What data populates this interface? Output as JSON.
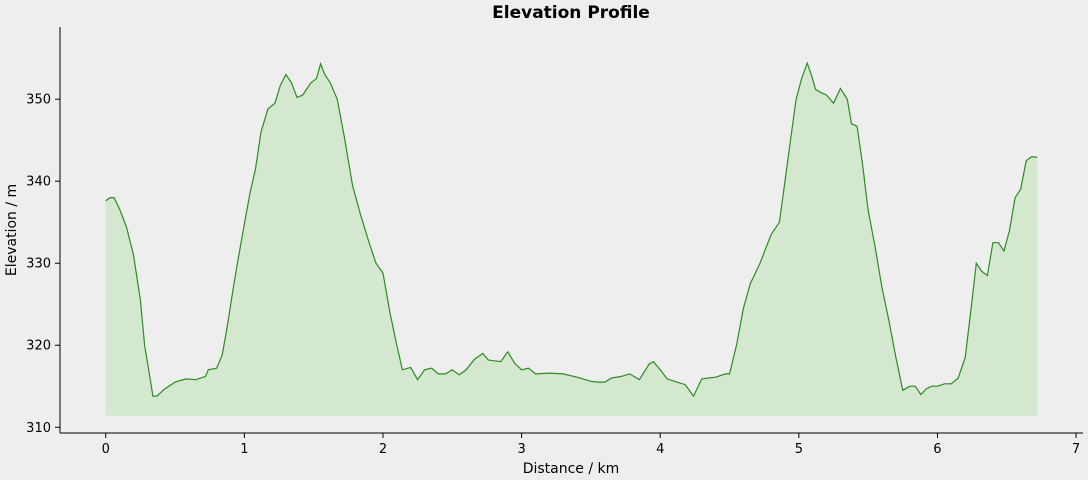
{
  "chart_data": {
    "type": "area",
    "title": "Elevation Profile",
    "xlabel": "Distance / km",
    "ylabel": "Elevation / m",
    "xlim": [
      -0.33,
      7.05
    ],
    "ylim": [
      309.3,
      358.8
    ],
    "xticks": [
      0,
      1,
      2,
      3,
      4,
      5,
      6,
      7
    ],
    "yticks": [
      310,
      320,
      330,
      340,
      350
    ],
    "baseline": 311.4,
    "grid": false,
    "legend": "none",
    "colors": {
      "line": "#2e8b22",
      "fill": "#d3e8cf",
      "background": "#eeeeee",
      "axis": "#000000"
    },
    "series": [
      {
        "x": [
          0,
          0.03,
          0.06,
          0.1,
          0.15,
          0.2,
          0.25,
          0.28,
          0.31,
          0.34,
          0.37,
          0.42,
          0.5,
          0.58,
          0.65,
          0.72,
          0.74,
          0.8,
          0.84,
          0.88,
          0.92,
          0.95,
          1.0,
          1.04,
          1.08,
          1.12,
          1.17,
          1.22,
          1.26,
          1.3,
          1.34,
          1.38,
          1.42,
          1.48,
          1.52,
          1.55,
          1.58,
          1.62,
          1.67,
          1.72,
          1.78,
          1.84,
          1.9,
          1.95,
          2.0,
          2.05,
          2.1,
          2.14,
          2.2,
          2.25,
          2.3,
          2.35,
          2.4,
          2.45,
          2.5,
          2.55,
          2.6,
          2.66,
          2.72,
          2.76,
          2.8,
          2.85,
          2.9,
          2.95,
          3.0,
          3.05,
          3.1,
          3.2,
          3.3,
          3.4,
          3.5,
          3.55,
          3.6,
          3.65,
          3.72,
          3.78,
          3.85,
          3.92,
          3.95,
          4.0,
          4.05,
          4.12,
          4.18,
          4.24,
          4.3,
          4.35,
          4.4,
          4.47,
          4.5,
          4.55,
          4.6,
          4.65,
          4.72,
          4.8,
          4.86,
          4.9,
          4.94,
          4.98,
          5.02,
          5.06,
          5.09,
          5.12,
          5.16,
          5.2,
          5.25,
          5.3,
          5.35,
          5.38,
          5.42,
          5.46,
          5.5,
          5.55,
          5.6,
          5.65,
          5.7,
          5.75,
          5.8,
          5.84,
          5.88,
          5.92,
          5.96,
          6.0,
          6.05,
          6.1,
          6.15,
          6.2,
          6.25,
          6.28,
          6.32,
          6.36,
          6.4,
          6.44,
          6.48,
          6.52,
          6.56,
          6.6,
          6.64,
          6.68,
          6.72
        ],
        "y": [
          337.6,
          338.0,
          338.0,
          336.6,
          334.4,
          331.0,
          325.5,
          320.0,
          317.0,
          313.8,
          313.8,
          314.6,
          315.5,
          315.9,
          315.8,
          316.2,
          317.0,
          317.2,
          318.8,
          322.6,
          327.0,
          330.0,
          334.8,
          338.5,
          341.5,
          346.0,
          348.8,
          349.5,
          351.7,
          353.0,
          352.0,
          350.2,
          350.5,
          352.0,
          352.5,
          354.3,
          353.0,
          352.0,
          350.0,
          345.5,
          339.5,
          335.8,
          332.5,
          330.0,
          328.8,
          324.0,
          320.0,
          317.0,
          317.3,
          315.8,
          317.0,
          317.2,
          316.5,
          316.5,
          317.0,
          316.4,
          317.0,
          318.3,
          319.0,
          318.2,
          318.1,
          318.0,
          319.2,
          317.8,
          317.0,
          317.2,
          316.5,
          316.6,
          316.5,
          316.1,
          315.6,
          315.5,
          315.5,
          316.0,
          316.2,
          316.5,
          315.8,
          317.7,
          318.0,
          317.0,
          315.9,
          315.5,
          315.2,
          313.8,
          315.9,
          316.0,
          316.1,
          316.5,
          316.5,
          320.0,
          324.5,
          327.5,
          330.0,
          333.5,
          335.0,
          340.0,
          345.0,
          350.0,
          352.5,
          354.4,
          353.0,
          351.2,
          350.8,
          350.5,
          349.5,
          351.3,
          350.0,
          347.0,
          346.7,
          342.0,
          336.5,
          332.0,
          327.0,
          323.0,
          318.5,
          314.5,
          315.0,
          315.0,
          314.0,
          314.7,
          315.0,
          315.0,
          315.3,
          315.3,
          316.0,
          318.5,
          325.5,
          330.0,
          329.0,
          328.5,
          332.5,
          332.5,
          331.5,
          334.0,
          338.0,
          339.0,
          342.5,
          343.0,
          342.9
        ]
      }
    ]
  }
}
